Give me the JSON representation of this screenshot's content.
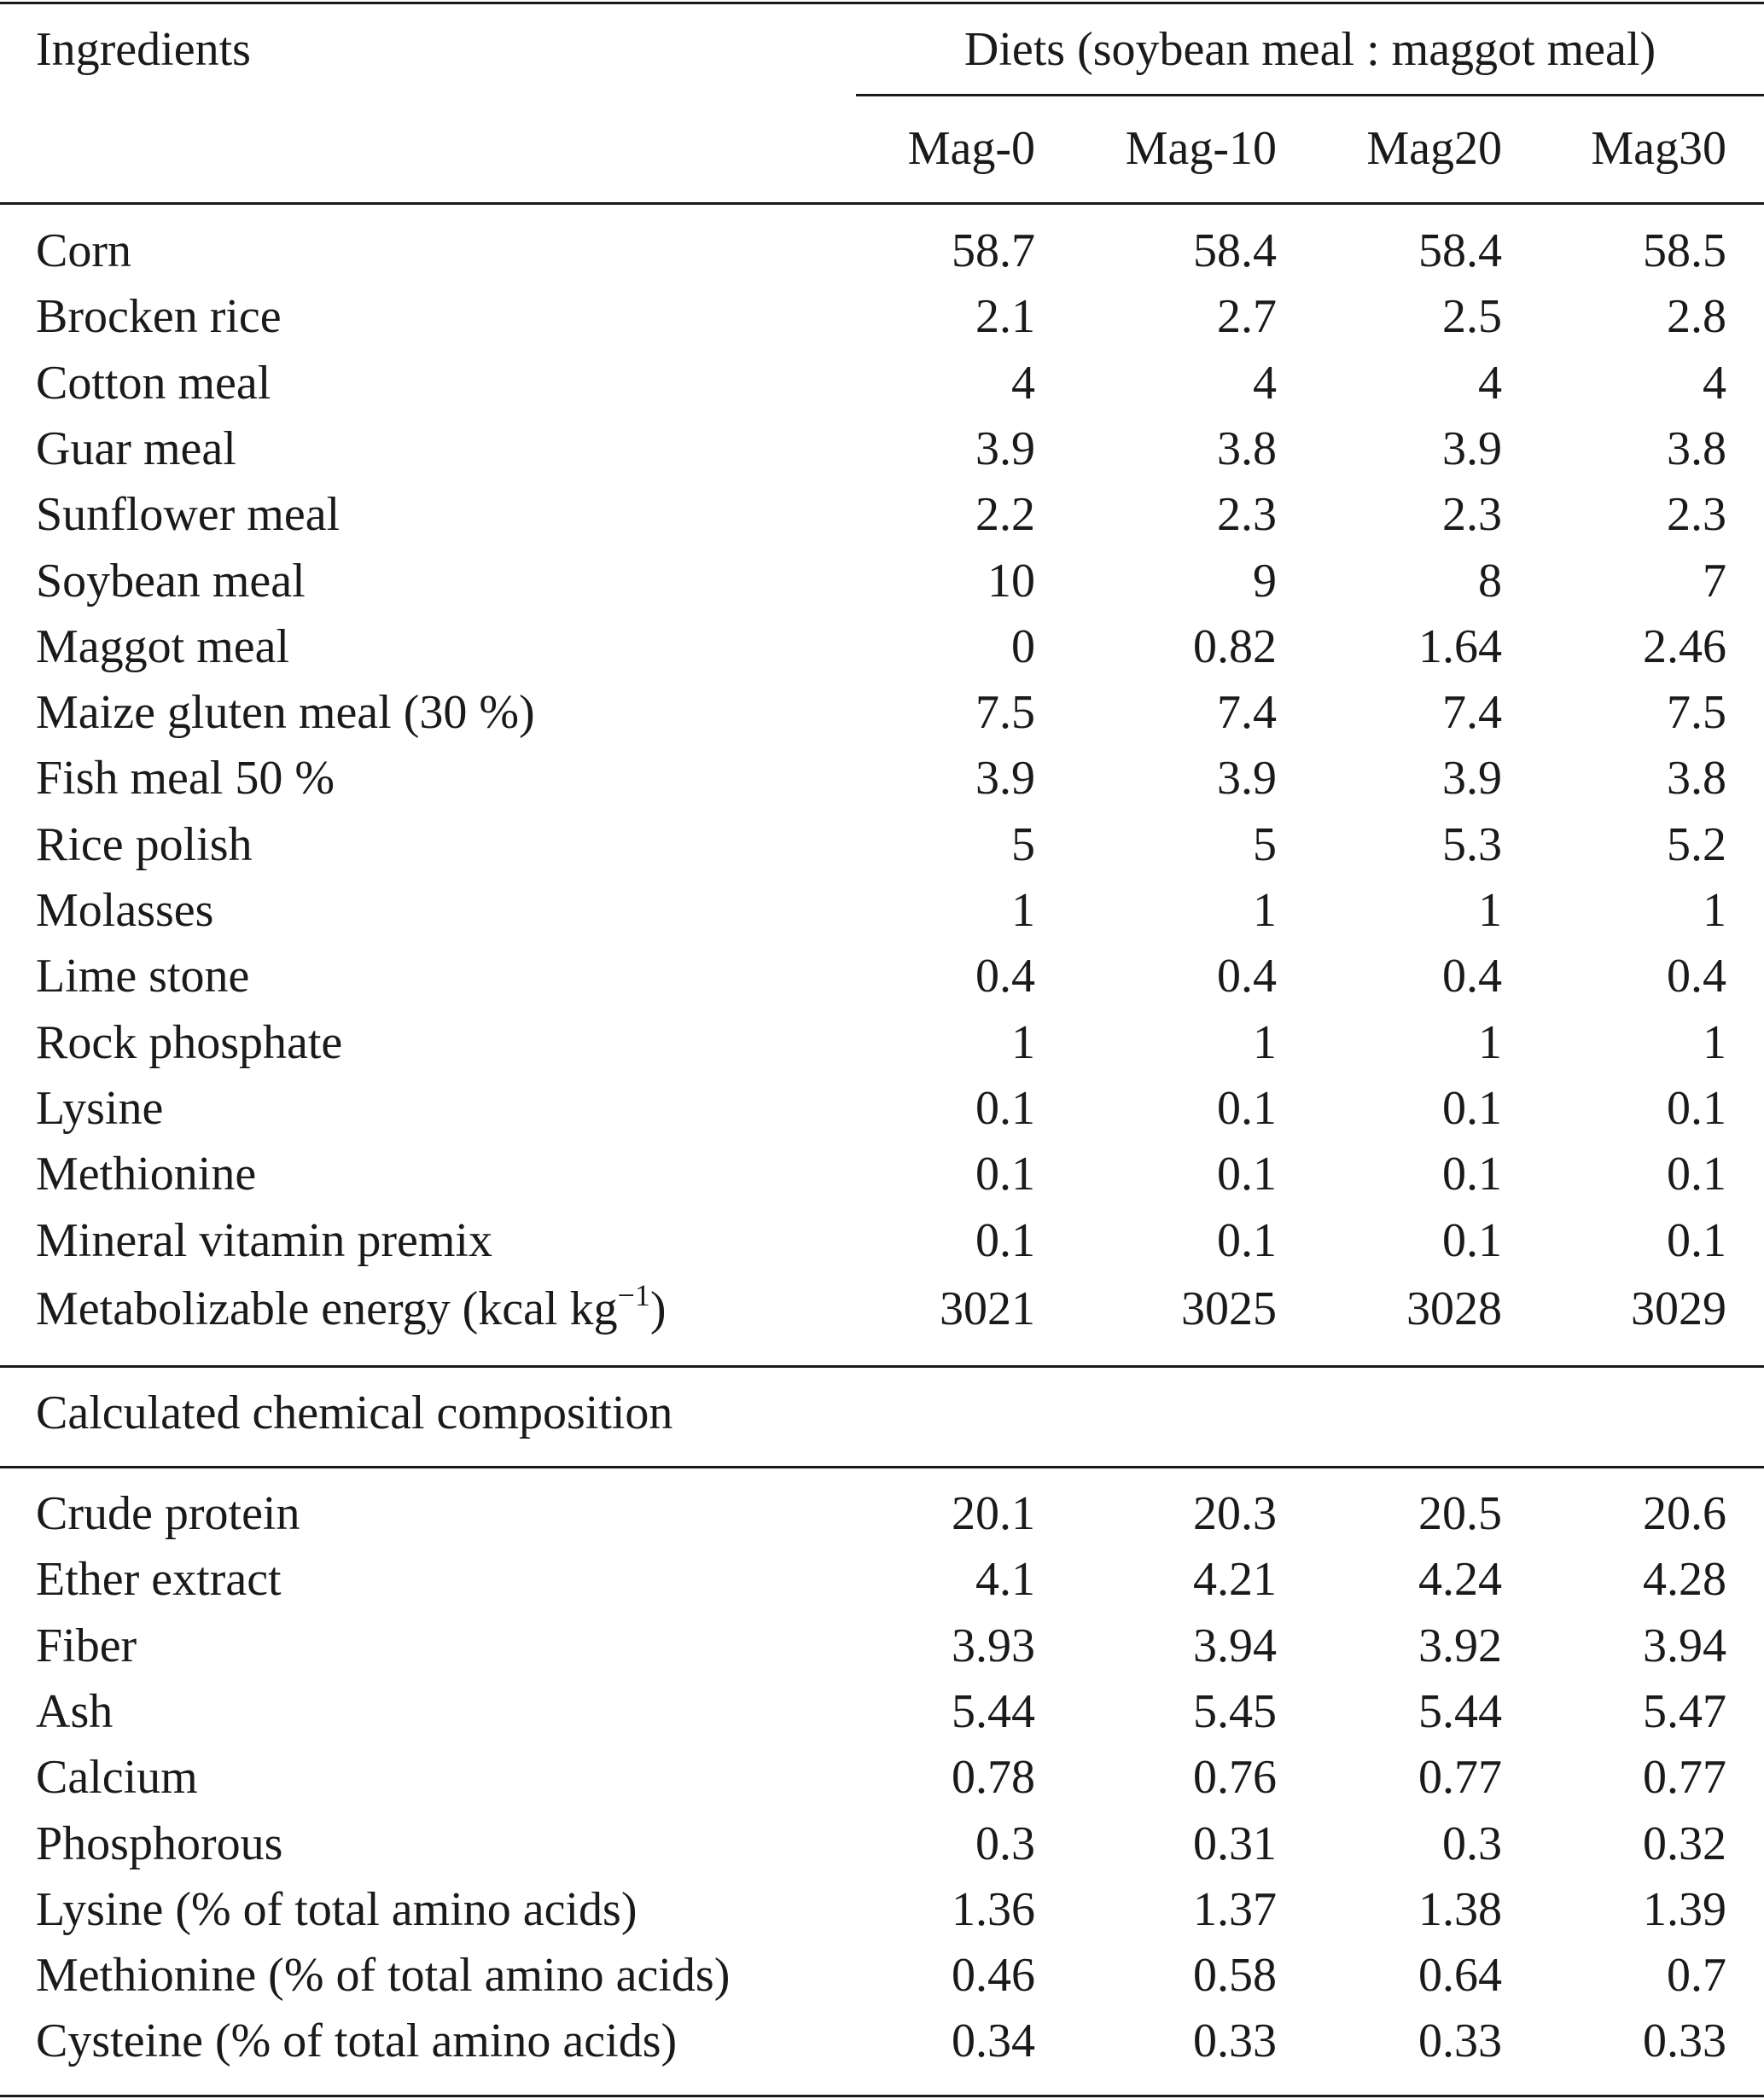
{
  "header": {
    "ingredients_label": "Ingredients",
    "diets_label": "Diets (soybean meal : maggot meal)",
    "columns": [
      "Mag-0",
      "Mag-10",
      "Mag20",
      "Mag30"
    ]
  },
  "ingredients": [
    {
      "label": "Corn",
      "values": [
        "58.7",
        "58.4",
        "58.4",
        "58.5"
      ]
    },
    {
      "label": "Brocken rice",
      "values": [
        "2.1",
        "2.7",
        "2.5",
        "2.8"
      ]
    },
    {
      "label": "Cotton meal",
      "values": [
        "4",
        "4",
        "4",
        "4"
      ]
    },
    {
      "label": "Guar meal",
      "values": [
        "3.9",
        "3.8",
        "3.9",
        "3.8"
      ]
    },
    {
      "label": "Sunflower meal",
      "values": [
        "2.2",
        "2.3",
        "2.3",
        "2.3"
      ]
    },
    {
      "label": "Soybean meal",
      "values": [
        "10",
        "9",
        "8",
        "7"
      ]
    },
    {
      "label": "Maggot meal",
      "values": [
        "0",
        "0.82",
        "1.64",
        "2.46"
      ]
    },
    {
      "label": "Maize gluten meal (30 %)",
      "values": [
        "7.5",
        "7.4",
        "7.4",
        "7.5"
      ]
    },
    {
      "label": "Fish meal 50 %",
      "values": [
        "3.9",
        "3.9",
        "3.9",
        "3.8"
      ]
    },
    {
      "label": "Rice polish",
      "values": [
        "5",
        "5",
        "5.3",
        "5.2"
      ]
    },
    {
      "label": "Molasses",
      "values": [
        "1",
        "1",
        "1",
        "1"
      ]
    },
    {
      "label": "Lime stone",
      "values": [
        "0.4",
        "0.4",
        "0.4",
        "0.4"
      ]
    },
    {
      "label": "Rock phosphate",
      "values": [
        "1",
        "1",
        "1",
        "1"
      ]
    },
    {
      "label": "Lysine",
      "values": [
        "0.1",
        "0.1",
        "0.1",
        "0.1"
      ]
    },
    {
      "label": "Methionine",
      "values": [
        "0.1",
        "0.1",
        "0.1",
        "0.1"
      ]
    },
    {
      "label": "Mineral vitamin premix",
      "values": [
        "0.1",
        "0.1",
        "0.1",
        "0.1"
      ]
    }
  ],
  "energy": {
    "label": "Metabolizable energy (kcal kg",
    "sup": "−1",
    "close": ")",
    "values": [
      "3021",
      "3025",
      "3028",
      "3029"
    ]
  },
  "composition_heading": "Calculated chemical composition",
  "composition": [
    {
      "label": "Crude protein",
      "values": [
        "20.1",
        "20.3",
        "20.5",
        "20.6"
      ]
    },
    {
      "label": "Ether extract",
      "values": [
        "4.1",
        "4.21",
        "4.24",
        "4.28"
      ]
    },
    {
      "label": "Fiber",
      "values": [
        "3.93",
        "3.94",
        "3.92",
        "3.94"
      ]
    },
    {
      "label": "Ash",
      "values": [
        "5.44",
        "5.45",
        "5.44",
        "5.47"
      ]
    },
    {
      "label": "Calcium",
      "values": [
        "0.78",
        "0.76",
        "0.77",
        "0.77"
      ]
    },
    {
      "label": "Phosphorous",
      "values": [
        "0.3",
        "0.31",
        "0.3",
        "0.32"
      ]
    },
    {
      "label": "Lysine (% of total amino acids)",
      "values": [
        "1.36",
        "1.37",
        "1.38",
        "1.39"
      ]
    },
    {
      "label": "Methionine (% of total amino acids)",
      "values": [
        "0.46",
        "0.58",
        "0.64",
        "0.7"
      ]
    },
    {
      "label": "Cysteine (% of total amino acids)",
      "values": [
        "0.34",
        "0.33",
        "0.33",
        "0.33"
      ]
    }
  ]
}
